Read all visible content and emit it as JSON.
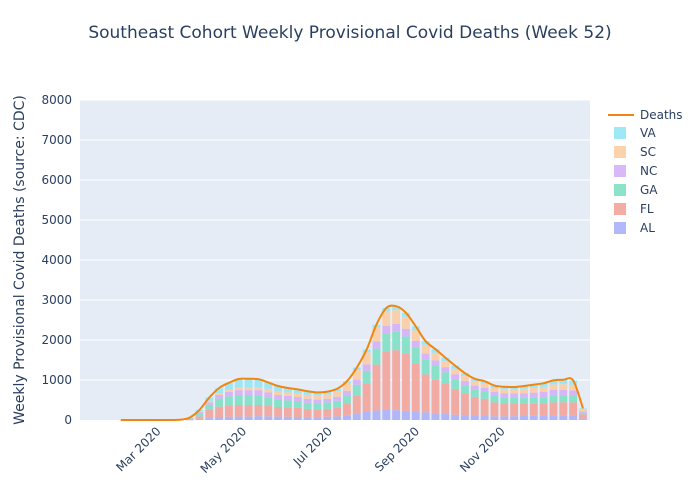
{
  "chart_data": {
    "type": "bar",
    "title": "Southeast Cohort Weekly Provisional Covid Deaths (Week 52)",
    "ylabel": "Weekly Provisional Covid Deaths (source: CDC)",
    "xlabel": "",
    "ylim": [
      0,
      8000
    ],
    "y_ticks": [
      0,
      1000,
      2000,
      3000,
      4000,
      5000,
      6000,
      7000,
      8000
    ],
    "x_ticks": [
      "Mar 2020",
      "May 2020",
      "Jul 2020",
      "Sep 2020",
      "Nov 2020"
    ],
    "stacked": true,
    "grid": true,
    "legend_position": "right",
    "x": [
      "2020-02-01",
      "2020-02-08",
      "2020-02-15",
      "2020-02-22",
      "2020-02-29",
      "2020-03-07",
      "2020-03-14",
      "2020-03-21",
      "2020-03-28",
      "2020-04-04",
      "2020-04-11",
      "2020-04-18",
      "2020-04-25",
      "2020-05-02",
      "2020-05-09",
      "2020-05-16",
      "2020-05-23",
      "2020-05-30",
      "2020-06-06",
      "2020-06-13",
      "2020-06-20",
      "2020-06-27",
      "2020-07-04",
      "2020-07-11",
      "2020-07-18",
      "2020-07-25",
      "2020-08-01",
      "2020-08-08",
      "2020-08-15",
      "2020-08-22",
      "2020-08-29",
      "2020-09-05",
      "2020-09-12",
      "2020-09-19",
      "2020-09-26",
      "2020-10-03",
      "2020-10-10",
      "2020-10-17",
      "2020-10-24",
      "2020-10-31",
      "2020-11-07",
      "2020-11-14",
      "2020-11-21",
      "2020-11-28",
      "2020-12-05",
      "2020-12-12",
      "2020-12-19",
      "2020-12-26"
    ],
    "series": [
      {
        "name": "AL",
        "color": "#aab0f7",
        "values": [
          0,
          0,
          0,
          0,
          0,
          0,
          0,
          5,
          30,
          60,
          75,
          80,
          85,
          85,
          95,
          90,
          85,
          80,
          75,
          70,
          70,
          80,
          90,
          120,
          160,
          200,
          235,
          250,
          245,
          230,
          210,
          190,
          170,
          150,
          130,
          110,
          100,
          100,
          90,
          90,
          95,
          100,
          105,
          110,
          120,
          115,
          110,
          40
        ]
      },
      {
        "name": "FL",
        "color": "#f3a49a",
        "values": [
          0,
          0,
          0,
          0,
          0,
          0,
          0,
          5,
          60,
          200,
          260,
          280,
          290,
          290,
          280,
          260,
          240,
          230,
          230,
          210,
          200,
          200,
          220,
          300,
          450,
          700,
          1150,
          1450,
          1500,
          1420,
          1200,
          950,
          850,
          750,
          650,
          560,
          480,
          430,
          350,
          330,
          320,
          310,
          300,
          300,
          320,
          330,
          330,
          100
        ]
      },
      {
        "name": "GA",
        "color": "#7ee0c4",
        "values": [
          0,
          0,
          0,
          0,
          0,
          0,
          5,
          30,
          80,
          120,
          200,
          230,
          250,
          250,
          240,
          220,
          190,
          180,
          170,
          150,
          150,
          160,
          170,
          200,
          270,
          330,
          400,
          450,
          460,
          440,
          400,
          370,
          330,
          290,
          240,
          200,
          180,
          170,
          160,
          150,
          150,
          150,
          160,
          160,
          170,
          170,
          160,
          40
        ]
      },
      {
        "name": "NC",
        "color": "#d5b0f8",
        "values": [
          0,
          0,
          0,
          0,
          0,
          0,
          0,
          10,
          30,
          60,
          90,
          110,
          120,
          120,
          130,
          120,
          110,
          110,
          100,
          100,
          90,
          90,
          100,
          110,
          130,
          160,
          180,
          200,
          200,
          190,
          170,
          150,
          140,
          130,
          120,
          110,
          100,
          100,
          100,
          100,
          100,
          110,
          120,
          130,
          140,
          140,
          140,
          40
        ]
      },
      {
        "name": "SC",
        "color": "#fbcda3",
        "values": [
          0,
          0,
          0,
          0,
          0,
          0,
          0,
          5,
          20,
          40,
          50,
          60,
          70,
          70,
          80,
          90,
          90,
          90,
          90,
          100,
          100,
          110,
          140,
          180,
          240,
          300,
          340,
          360,
          340,
          300,
          260,
          220,
          190,
          160,
          140,
          120,
          110,
          110,
          100,
          100,
          100,
          110,
          120,
          130,
          140,
          140,
          140,
          40
        ]
      },
      {
        "name": "VA",
        "color": "#95e6f6",
        "values": [
          0,
          0,
          0,
          0,
          0,
          0,
          0,
          5,
          30,
          80,
          120,
          170,
          210,
          220,
          200,
          160,
          130,
          110,
          100,
          90,
          80,
          70,
          60,
          60,
          60,
          70,
          80,
          90,
          100,
          100,
          100,
          90,
          90,
          80,
          80,
          70,
          60,
          60,
          60,
          60,
          60,
          70,
          80,
          90,
          100,
          110,
          110,
          30
        ]
      },
      {
        "name": "Deaths",
        "type": "line",
        "color": "#f0860f",
        "values": [
          0,
          0,
          0,
          0,
          0,
          0,
          5,
          60,
          250,
          560,
          800,
          930,
          1025,
          1030,
          1020,
          940,
          850,
          800,
          765,
          720,
          690,
          710,
          780,
          970,
          1310,
          1760,
          2385,
          2800,
          2845,
          2680,
          2340,
          1970,
          1770,
          1560,
          1360,
          1170,
          1030,
          970,
          860,
          830,
          825,
          850,
          885,
          920,
          990,
          1005,
          990,
          290
        ]
      }
    ]
  }
}
